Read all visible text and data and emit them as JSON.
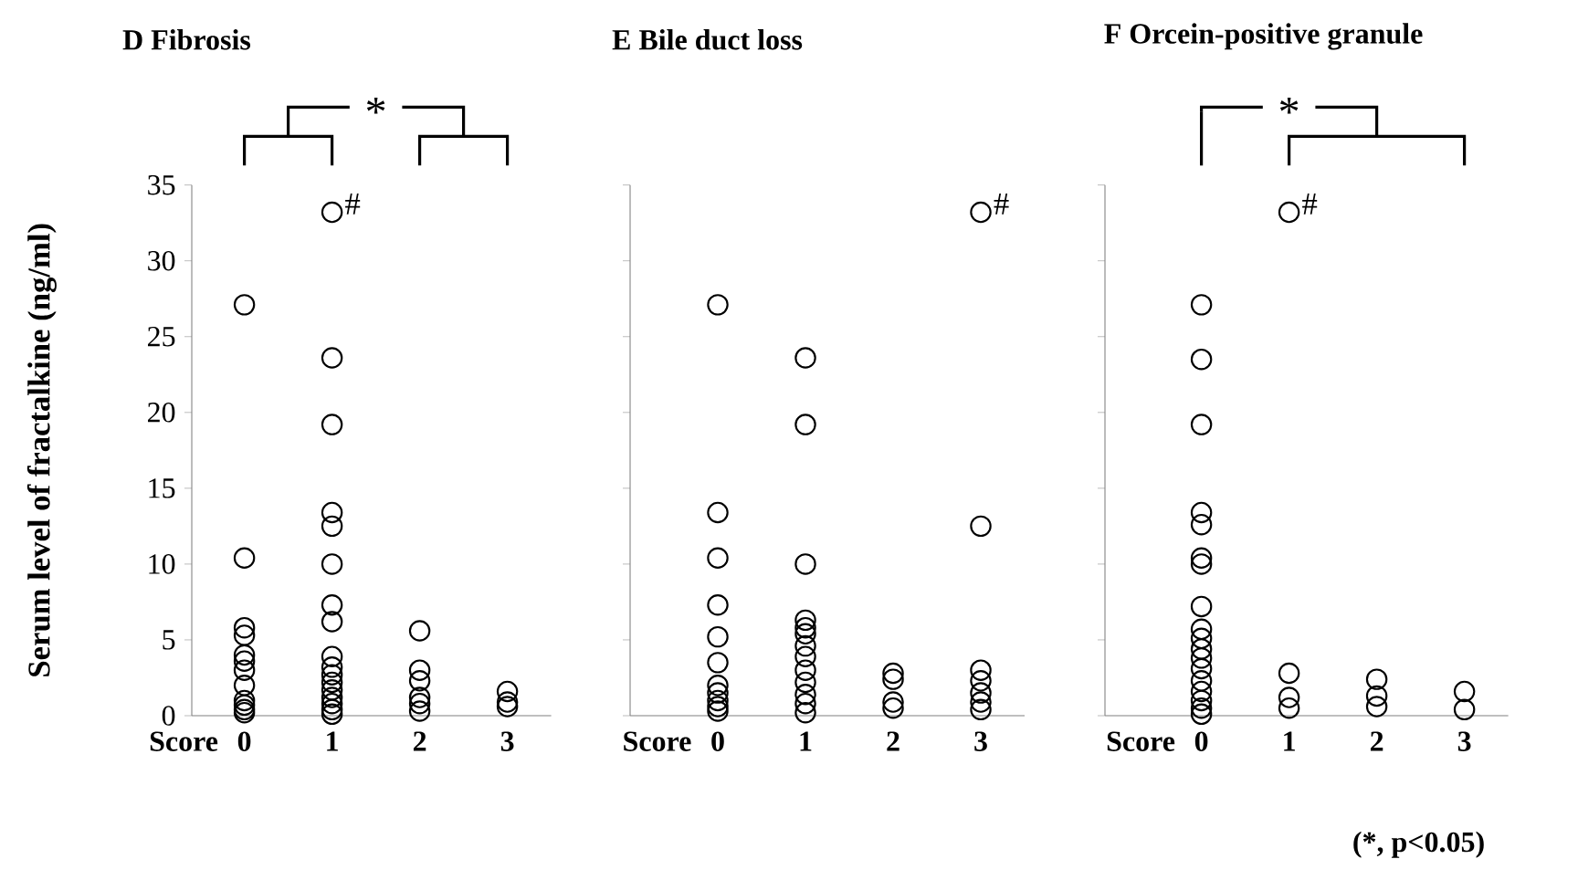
{
  "chart_data": [
    {
      "type": "scatter",
      "title": "D  Fibrosis",
      "xlabel": "Score",
      "ylabel": "Serum level of fractalkine (ng/ml)",
      "categories": [
        "0",
        "1",
        "2",
        "3"
      ],
      "series": [
        {
          "color": "#000000",
          "x": [
            "0",
            "0",
            "0",
            "0",
            "0",
            "0",
            "0",
            "0",
            "0",
            "0",
            "0",
            "0",
            "1",
            "1",
            "1",
            "1",
            "1",
            "1",
            "1",
            "1",
            "1",
            "1",
            "1",
            "1",
            "1",
            "1",
            "1",
            "1",
            "1",
            "2",
            "2",
            "2",
            "2",
            "2",
            "2",
            "3",
            "3",
            "3"
          ],
          "values": [
            27.1,
            10.4,
            5.8,
            5.3,
            4.0,
            3.6,
            3.0,
            2.0,
            1.0,
            0.7,
            0.4,
            0.2,
            33.2,
            23.6,
            19.2,
            13.4,
            12.5,
            10.0,
            7.3,
            6.2,
            3.9,
            3.2,
            2.7,
            2.2,
            1.7,
            1.2,
            0.8,
            0.4,
            0.1,
            5.6,
            3.0,
            2.3,
            1.2,
            0.8,
            0.3,
            1.6,
            0.9,
            0.6
          ]
        }
      ],
      "ylim": [
        0,
        35
      ],
      "yticks": [
        0,
        5,
        10,
        15,
        20,
        25,
        30,
        35
      ],
      "marker": "circle",
      "grid": false,
      "annotations": [
        "*",
        {
          "text": "#",
          "x": "1",
          "y": 33.2
        }
      ]
    },
    {
      "type": "scatter",
      "title": "E  Bile duct loss",
      "xlabel": "Score",
      "categories": [
        "0",
        "1",
        "2",
        "3"
      ],
      "series": [
        {
          "color": "#000000",
          "x": [
            "0",
            "0",
            "0",
            "0",
            "0",
            "0",
            "0",
            "0",
            "0",
            "0",
            "0",
            "1",
            "1",
            "1",
            "1",
            "1",
            "1",
            "1",
            "1",
            "1",
            "1",
            "1",
            "1",
            "1",
            "2",
            "2",
            "2",
            "2",
            "3",
            "3",
            "3",
            "3",
            "3",
            "3",
            "3"
          ],
          "values": [
            27.1,
            13.4,
            10.4,
            7.3,
            5.2,
            3.5,
            2.0,
            1.5,
            1.0,
            0.6,
            0.3,
            23.6,
            19.2,
            10.0,
            6.3,
            5.8,
            5.4,
            4.6,
            3.9,
            3.0,
            2.2,
            1.4,
            0.8,
            0.2,
            2.8,
            2.4,
            0.9,
            0.5,
            33.2,
            12.5,
            3.0,
            2.3,
            1.5,
            0.9,
            0.4
          ]
        }
      ],
      "ylim": [
        0,
        35
      ],
      "yticks": [
        0,
        5,
        10,
        15,
        20,
        25,
        30,
        35
      ],
      "tick_labels": "x",
      "marker": "circle",
      "grid": false,
      "annotations": [
        {
          "text": "#",
          "x": "3",
          "y": 33.2
        }
      ]
    },
    {
      "type": "scatter",
      "title": "F  Orcein-positive granule",
      "xlabel": "Score",
      "categories": [
        "0",
        "1",
        "2",
        "3"
      ],
      "series": [
        {
          "color": "#000000",
          "x": [
            "0",
            "0",
            "0",
            "0",
            "0",
            "0",
            "0",
            "0",
            "0",
            "0",
            "0",
            "0",
            "0",
            "0",
            "0",
            "0",
            "0",
            "0",
            "1",
            "1",
            "1",
            "1",
            "2",
            "2",
            "2",
            "3",
            "3"
          ],
          "values": [
            27.1,
            23.5,
            19.2,
            13.4,
            12.6,
            10.4,
            10.0,
            7.2,
            5.7,
            5.1,
            4.4,
            3.8,
            3.1,
            2.3,
            1.6,
            1.0,
            0.5,
            0.1,
            33.2,
            2.8,
            1.2,
            0.5,
            2.4,
            1.3,
            0.6,
            1.6,
            0.4
          ]
        }
      ],
      "ylim": [
        0,
        35
      ],
      "yticks": [
        0,
        5,
        10,
        15,
        20,
        25,
        30,
        35
      ],
      "tick_labels": "x",
      "marker": "circle",
      "grid": false,
      "annotations": [
        "*",
        {
          "text": "#",
          "x": "1",
          "y": 33.2
        },
        "(*, p<0.05)"
      ]
    }
  ]
}
